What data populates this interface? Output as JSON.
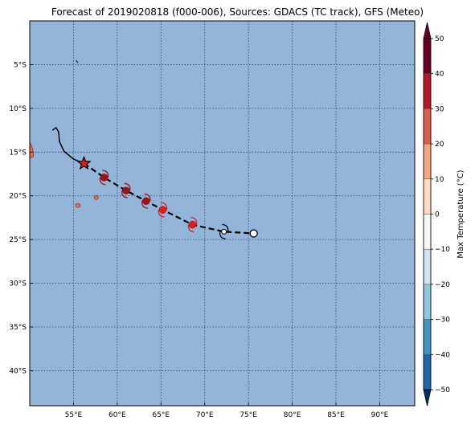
{
  "title": "Forecast of 2019020818 (f000-006), Sources: GDACS (TC track), GFS (Meteo)",
  "map": {
    "lon_range": [
      50,
      94
    ],
    "lat_range": [
      -44,
      0
    ],
    "ocean_color": "#93b5d9",
    "lon_ticks": [
      {
        "value": 55,
        "label": "55°E"
      },
      {
        "value": 60,
        "label": "60°E"
      },
      {
        "value": 65,
        "label": "65°E"
      },
      {
        "value": 70,
        "label": "70°E"
      },
      {
        "value": 75,
        "label": "75°E"
      },
      {
        "value": 80,
        "label": "80°E"
      },
      {
        "value": 85,
        "label": "85°E"
      },
      {
        "value": 90,
        "label": "90°E"
      }
    ],
    "lat_ticks": [
      {
        "value": -5,
        "label": "5°S"
      },
      {
        "value": -10,
        "label": "10°S"
      },
      {
        "value": -15,
        "label": "15°S"
      },
      {
        "value": -20,
        "label": "20°S"
      },
      {
        "value": -25,
        "label": "25°S"
      },
      {
        "value": -30,
        "label": "30°S"
      },
      {
        "value": -35,
        "label": "35°S"
      },
      {
        "value": -40,
        "label": "40°S"
      }
    ],
    "past_track": [
      [
        52.6,
        -12.5
      ],
      [
        53.0,
        -12.2
      ],
      [
        53.3,
        -12.7
      ],
      [
        53.4,
        -13.8
      ],
      [
        53.9,
        -14.9
      ],
      [
        55.0,
        -15.8
      ],
      [
        56.2,
        -16.3
      ]
    ],
    "forecast_track": [
      [
        56.2,
        -16.3
      ],
      [
        58.5,
        -17.9
      ],
      [
        61.0,
        -19.4
      ],
      [
        63.3,
        -20.6
      ],
      [
        65.2,
        -21.6
      ],
      [
        68.6,
        -23.3
      ],
      [
        72.2,
        -24.1
      ],
      [
        75.6,
        -24.3
      ]
    ],
    "current_position": {
      "lon": 56.2,
      "lat": -16.3
    },
    "forecast_points": [
      {
        "lon": 58.5,
        "lat": -17.9,
        "color": "#a50f15",
        "symbol": "cyclone"
      },
      {
        "lon": 61.0,
        "lat": -19.4,
        "color": "#a50f15",
        "symbol": "cyclone"
      },
      {
        "lon": 63.3,
        "lat": -20.6,
        "color": "#a50f15",
        "symbol": "cyclone"
      },
      {
        "lon": 65.2,
        "lat": -21.6,
        "color": "#e41a1c",
        "symbol": "cyclone"
      },
      {
        "lon": 68.6,
        "lat": -23.3,
        "color": "#e41a1c",
        "symbol": "cyclone"
      },
      {
        "lon": 72.2,
        "lat": -24.1,
        "color": "#ffffff",
        "symbol": "cyclone"
      },
      {
        "lon": 75.6,
        "lat": -24.3,
        "color": "#ffffff",
        "symbol": "circle"
      }
    ],
    "islands": [
      {
        "name": "Madagascar edge",
        "lon": 50.1,
        "lat": -15.0,
        "color": "#e8704a"
      },
      {
        "name": "Reunion",
        "lon": 55.5,
        "lat": -21.1,
        "color": "#e8704a"
      },
      {
        "name": "Mauritius",
        "lon": 57.6,
        "lat": -20.2,
        "color": "#e8704a"
      }
    ]
  },
  "colorbar": {
    "label": "Max Temperature (°C)",
    "ticks": [
      50,
      40,
      30,
      20,
      10,
      0,
      -10,
      -20,
      -30,
      -40,
      -50
    ],
    "colors": [
      "#67001f",
      "#b2182b",
      "#d6604d",
      "#f4a582",
      "#fddbc7",
      "#f7f7f7",
      "#d1e5f0",
      "#92c5de",
      "#4393c3",
      "#2166ac",
      "#053061"
    ]
  }
}
